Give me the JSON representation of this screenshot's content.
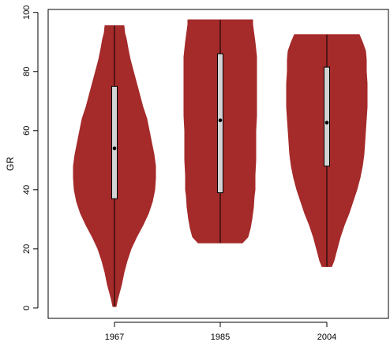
{
  "chart_data": {
    "type": "violin",
    "title": "",
    "xlabel": "",
    "ylabel": "GR",
    "ylim": [
      -3.5,
      101
    ],
    "yticks": [
      0,
      20,
      40,
      60,
      80,
      100
    ],
    "categories": [
      "1967",
      "1985",
      "2004"
    ],
    "fill_color": "#a52a2a",
    "box_color": "#d3d3d3",
    "grid": false,
    "legend": "none",
    "violins": [
      {
        "category": "1967",
        "min": 0.5,
        "q1": 37,
        "median": 54,
        "q3": 75,
        "max": 95.5,
        "halfwidths": [
          [
            0.5,
            2
          ],
          [
            3,
            4
          ],
          [
            5,
            6
          ],
          [
            8,
            9
          ],
          [
            12,
            12
          ],
          [
            16,
            16
          ],
          [
            20,
            21
          ],
          [
            24,
            28
          ],
          [
            28,
            36
          ],
          [
            32,
            43
          ],
          [
            36,
            48
          ],
          [
            40,
            51
          ],
          [
            44,
            52
          ],
          [
            48,
            52
          ],
          [
            52,
            50
          ],
          [
            56,
            47
          ],
          [
            60,
            44
          ],
          [
            64,
            41
          ],
          [
            68,
            36
          ],
          [
            72,
            32
          ],
          [
            76,
            28
          ],
          [
            80,
            24
          ],
          [
            84,
            20
          ],
          [
            88,
            17
          ],
          [
            91,
            15
          ],
          [
            93,
            13
          ],
          [
            95.5,
            12
          ]
        ]
      },
      {
        "category": "1985",
        "min": 22,
        "q1": 39,
        "median": 63.5,
        "q3": 86,
        "max": 97.5,
        "halfwidths": [
          [
            22,
            28
          ],
          [
            24,
            35
          ],
          [
            27,
            38
          ],
          [
            30,
            40
          ],
          [
            34,
            42
          ],
          [
            38,
            43
          ],
          [
            40,
            44
          ],
          [
            42,
            44
          ],
          [
            45,
            44
          ],
          [
            50,
            45
          ],
          [
            55,
            45
          ],
          [
            60,
            45
          ],
          [
            65,
            46
          ],
          [
            70,
            46
          ],
          [
            75,
            46
          ],
          [
            80,
            46
          ],
          [
            85,
            46
          ],
          [
            90,
            44
          ],
          [
            94,
            42
          ],
          [
            96,
            41
          ],
          [
            97.5,
            41
          ]
        ]
      },
      {
        "category": "2004",
        "min": 14,
        "q1": 48,
        "median": 62.7,
        "q3": 81.5,
        "max": 92.5,
        "halfwidths": [
          [
            14,
            6
          ],
          [
            16,
            9
          ],
          [
            20,
            13
          ],
          [
            24,
            17
          ],
          [
            28,
            22
          ],
          [
            32,
            28
          ],
          [
            36,
            33
          ],
          [
            40,
            38
          ],
          [
            44,
            42
          ],
          [
            48,
            45
          ],
          [
            52,
            47
          ],
          [
            56,
            48
          ],
          [
            60,
            49
          ],
          [
            64,
            50
          ],
          [
            68,
            51
          ],
          [
            72,
            51
          ],
          [
            76,
            51
          ],
          [
            80,
            50
          ],
          [
            84,
            50
          ],
          [
            87,
            49
          ],
          [
            90,
            45
          ],
          [
            92.5,
            41
          ]
        ]
      }
    ]
  }
}
